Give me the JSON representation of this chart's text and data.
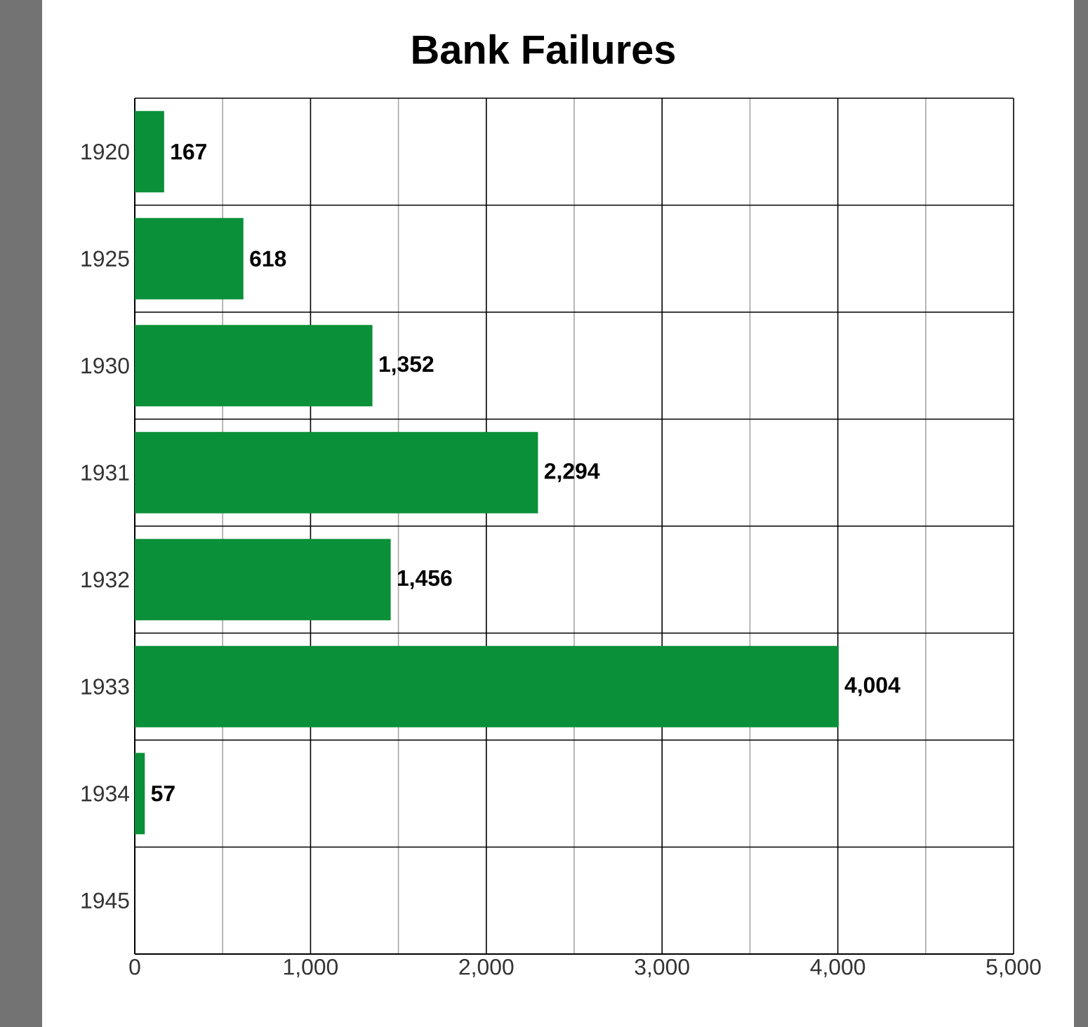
{
  "chart_data": {
    "type": "bar",
    "orientation": "horizontal",
    "title": "Bank Failures",
    "categories": [
      "1920",
      "1925",
      "1930",
      "1931",
      "1932",
      "1933",
      "1934",
      "1945"
    ],
    "values": [
      167,
      618,
      1352,
      2294,
      1456,
      4004,
      57,
      null
    ],
    "value_labels": [
      "167",
      "618",
      "1,352",
      "2,294",
      "1,456",
      "4,004",
      "57",
      null
    ],
    "color": "#0a9038",
    "xlim": [
      0,
      5000
    ],
    "xticks": [
      0,
      {
        "value": 500,
        "label": null
      },
      {
        "value": 1000,
        "label": "1,000"
      },
      {
        "value": 1500,
        "label": null
      },
      {
        "value": 2000,
        "label": "2,000"
      },
      {
        "value": 2500,
        "label": null
      },
      {
        "value": 3000,
        "label": "3,000"
      },
      {
        "value": 3500,
        "label": null
      },
      {
        "value": 4000,
        "label": "4,000"
      },
      {
        "value": 4500,
        "label": null
      },
      {
        "value": 5000,
        "label": "5,000"
      }
    ],
    "grid": true
  }
}
